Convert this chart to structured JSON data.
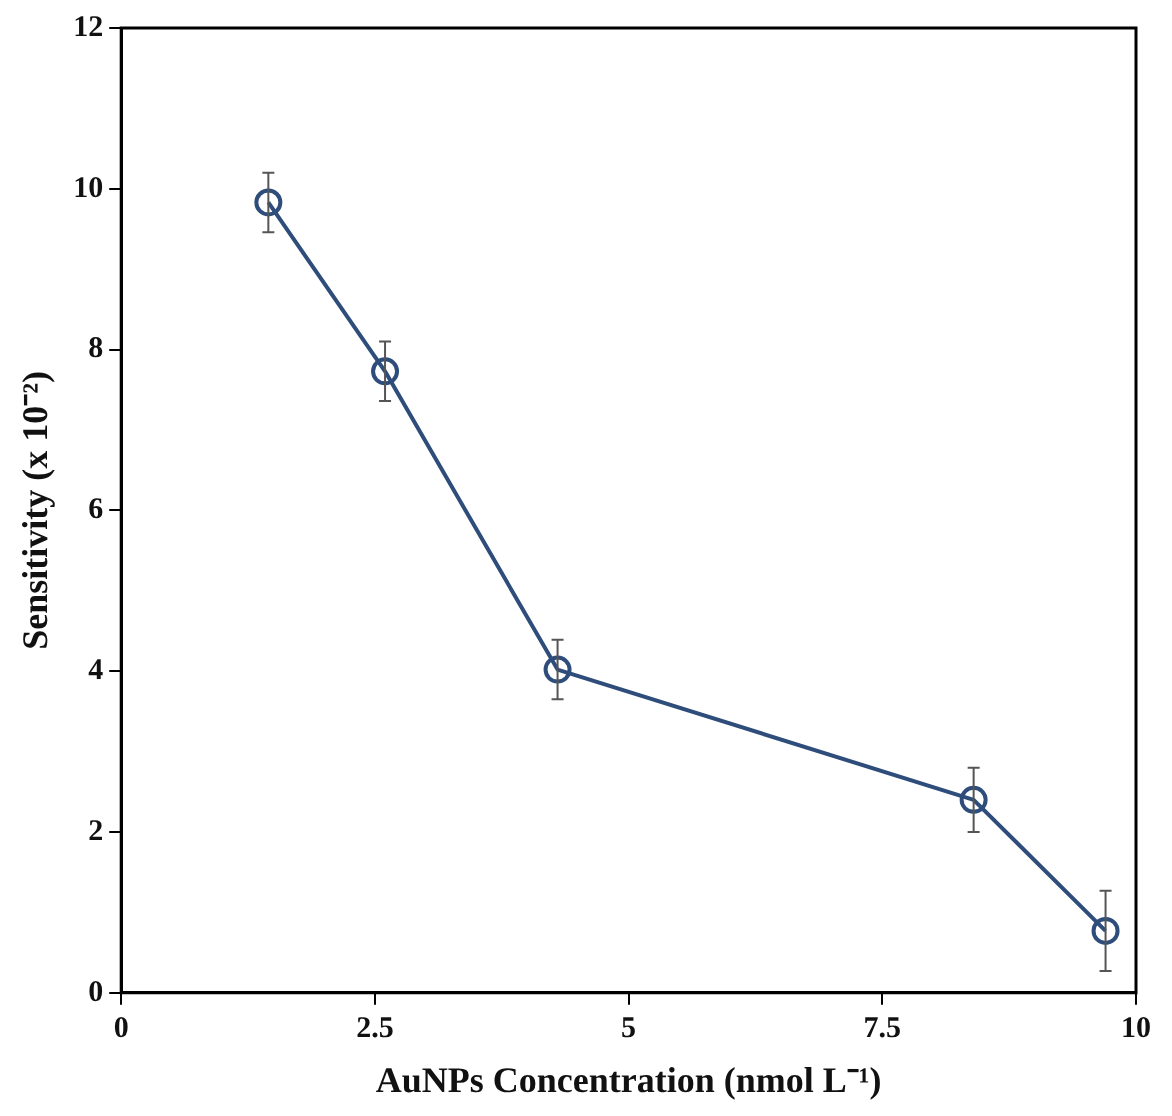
{
  "chart_data": {
    "type": "line",
    "xlabel": "AuNPs Concentration (nmol L⁻¹)",
    "ylabel": "Sensitivity (x 10⁻²)",
    "x": [
      1.45,
      2.6,
      4.3,
      8.4,
      9.7
    ],
    "series": [
      {
        "color": "#2e4d7b",
        "values": [
          9.83,
          7.73,
          4.02,
          2.4,
          0.77
        ],
        "errors": [
          0.37,
          0.37,
          0.37,
          0.4,
          0.5
        ]
      }
    ],
    "xlim": [
      0,
      10
    ],
    "xticks": [
      0,
      2.5,
      5,
      7.5,
      10
    ],
    "ylim": [
      0,
      12
    ],
    "yticks": [
      0,
      2,
      4,
      6,
      8,
      10,
      12
    ],
    "marker": "circle",
    "line_style": "solid",
    "grid": false,
    "legend": false
  }
}
